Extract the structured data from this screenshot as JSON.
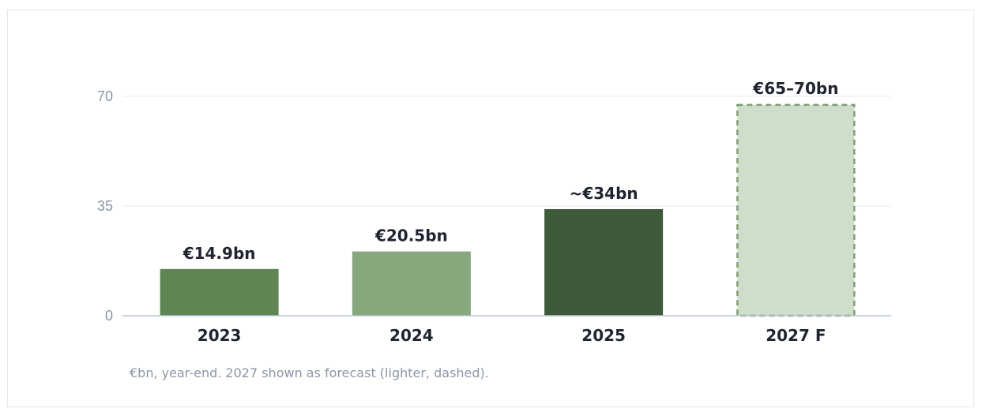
{
  "chart_data": {
    "type": "bar",
    "categories": [
      "2023",
      "2024",
      "2025",
      "2027 F"
    ],
    "values": [
      14.9,
      20.5,
      34,
      67.5
    ],
    "data_labels": [
      "€14.9bn",
      "€20.5bn",
      "~€34bn",
      "€65–70bn"
    ],
    "forecast": [
      false,
      false,
      false,
      true
    ],
    "colors": [
      "#5f8553",
      "#87a87c",
      "#3f5a3b",
      "#cfddcb"
    ],
    "forecast_border_color": "#7ea06f",
    "ylim": [
      0,
      70
    ],
    "yticks": [
      0,
      35,
      70
    ],
    "ytick_labels": [
      "0",
      "35",
      "70"
    ],
    "grid": true,
    "gridline_color": "#e4e8ee",
    "axis_color": "#b9c3d1"
  },
  "caption": "€bn, year-end. 2027 shown as forecast (lighter, dashed)."
}
